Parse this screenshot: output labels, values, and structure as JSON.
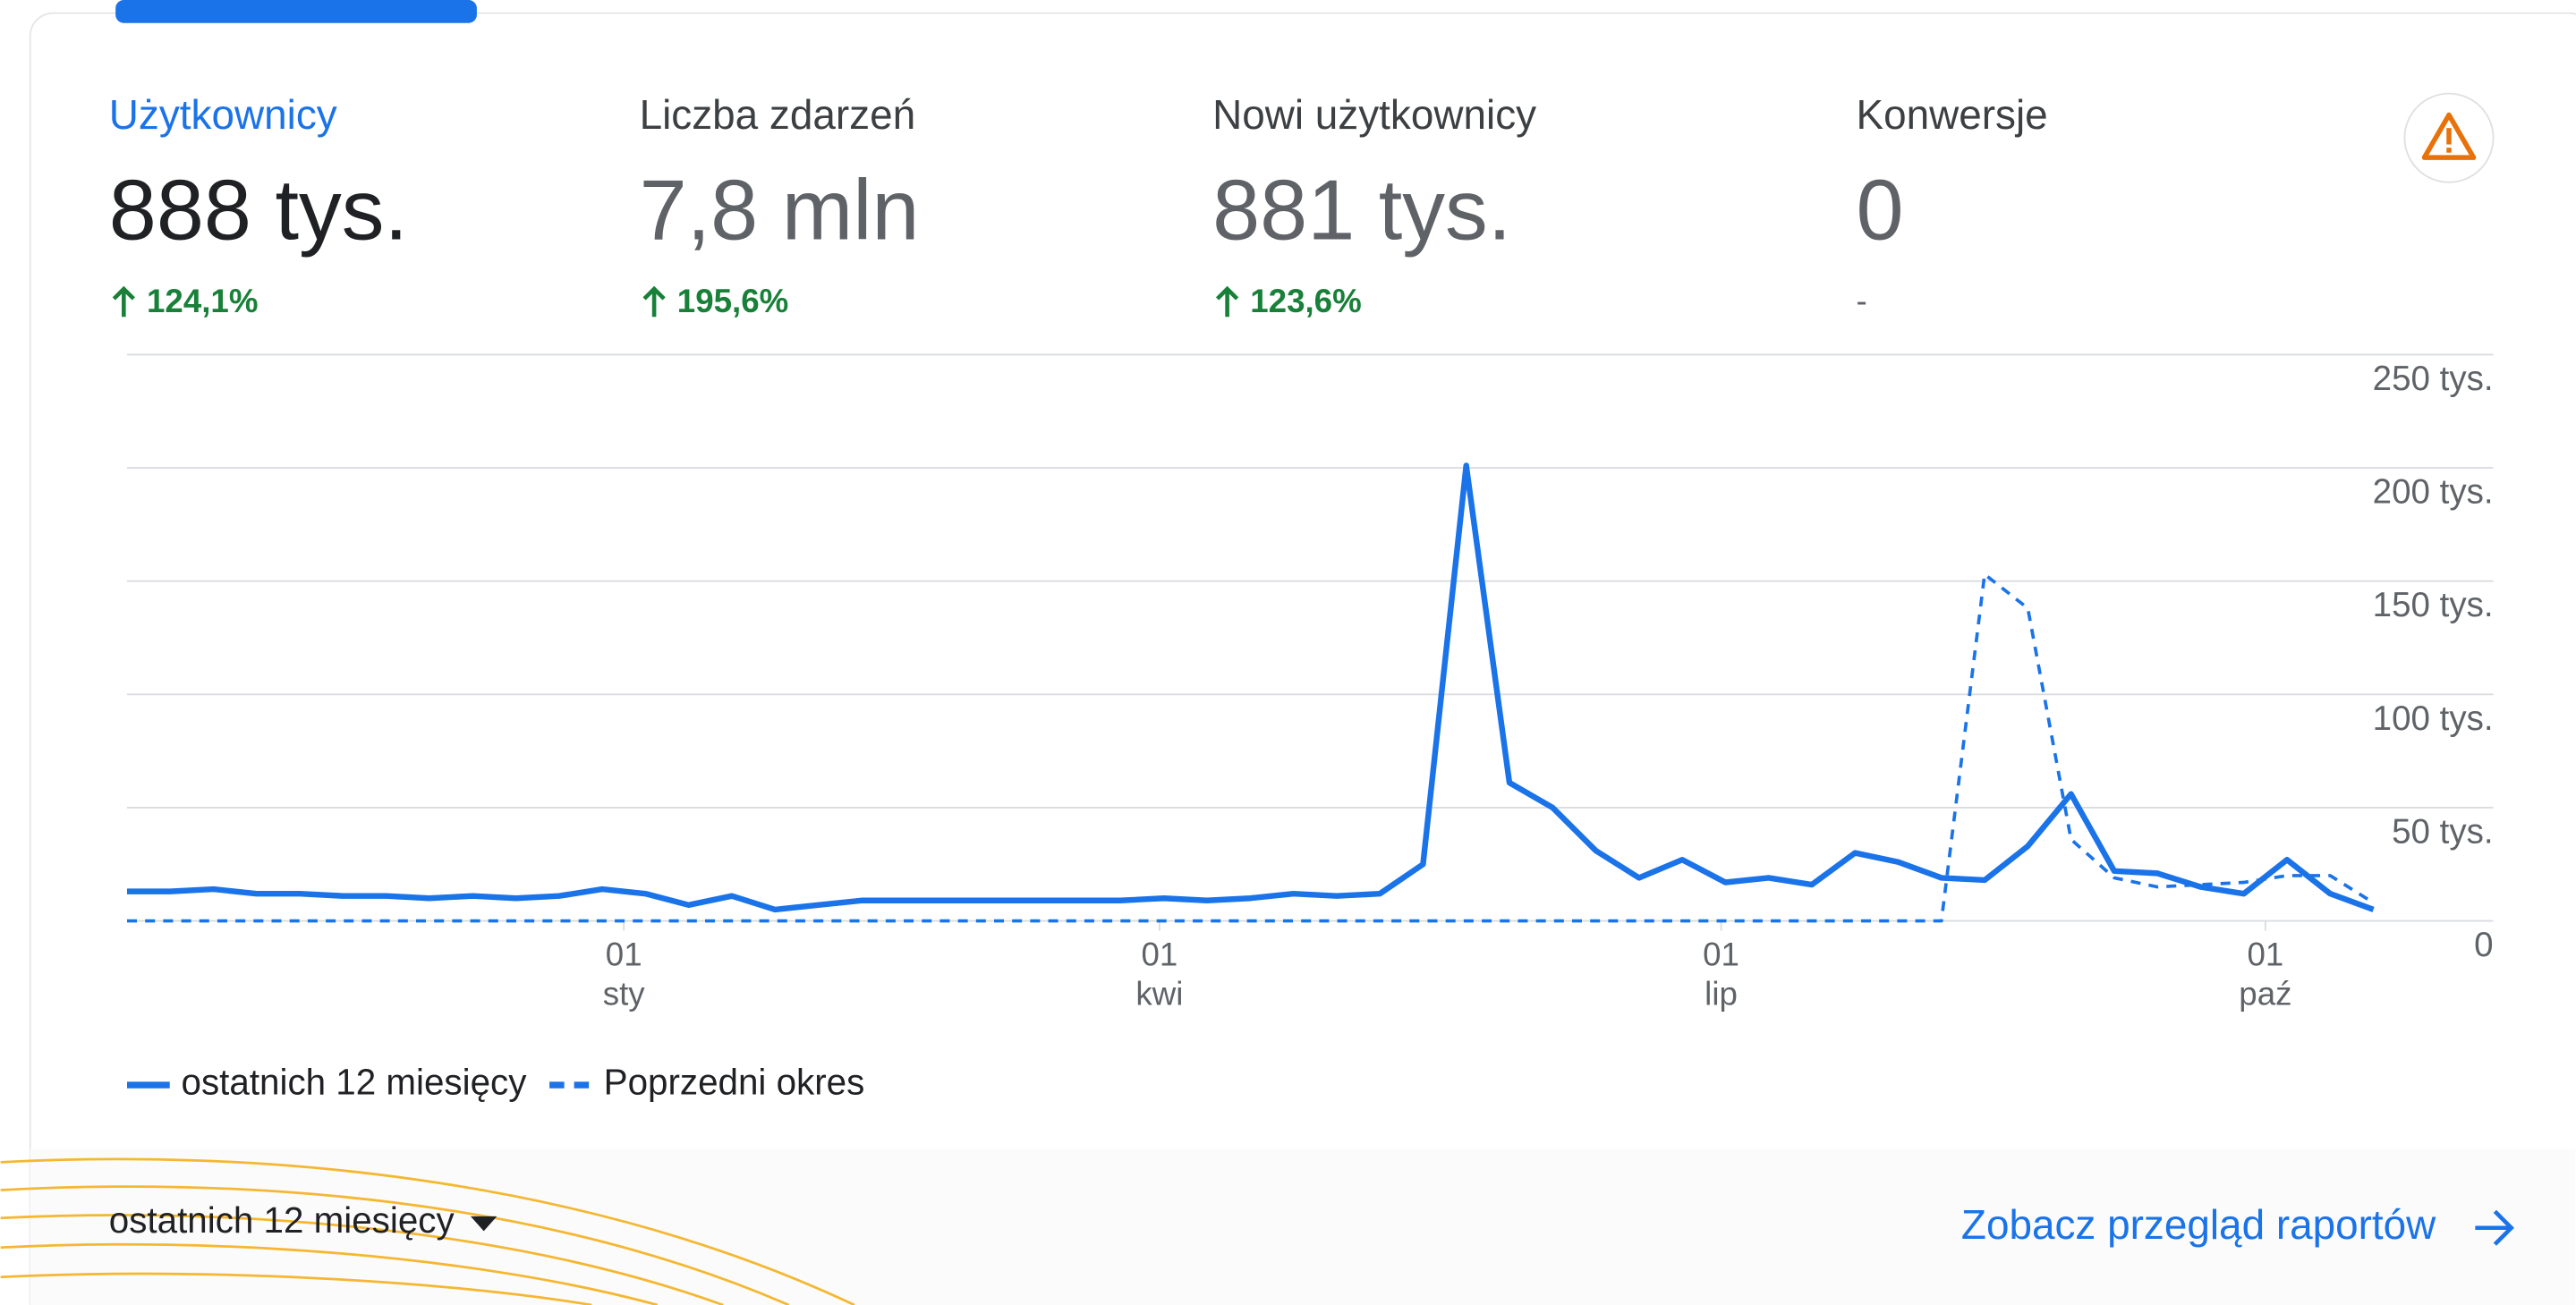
{
  "metrics": [
    {
      "label": "Użytkownicy",
      "value": "888 tys.",
      "change": "124,1%"
    },
    {
      "label": "Liczba zdarzeń",
      "value": "7,8 mln",
      "change": "195,6%"
    },
    {
      "label": "Nowi użytkownicy",
      "value": "881 tys.",
      "change": "123,6%"
    },
    {
      "label": "Konwersje",
      "value": "0",
      "change": "-"
    }
  ],
  "chart_data": {
    "type": "line",
    "x": [
      0,
      1,
      2,
      3,
      4,
      5,
      6,
      7,
      8,
      9,
      10,
      11,
      12,
      13,
      14,
      15,
      16,
      17,
      18,
      19,
      20,
      21,
      22,
      23,
      24,
      25,
      26,
      27,
      28,
      29,
      30,
      31,
      32,
      33,
      34,
      35,
      36,
      37,
      38,
      39,
      40,
      41,
      42,
      43,
      44,
      45,
      46,
      47,
      48,
      49,
      50,
      51,
      52
    ],
    "xlim": [
      0,
      52
    ],
    "xticks": [
      {
        "value": 11.5,
        "label": [
          "01",
          "sty"
        ]
      },
      {
        "value": 23.9,
        "label": [
          "01",
          "kwi"
        ]
      },
      {
        "value": 36.9,
        "label": [
          "01",
          "lip"
        ]
      },
      {
        "value": 49.5,
        "label": [
          "01",
          "paź"
        ]
      }
    ],
    "ylim": [
      0,
      250
    ],
    "yticks": [
      0,
      {
        "value": 50,
        "label": "50 tys."
      },
      {
        "value": 100,
        "label": "100 tys."
      },
      {
        "value": 150,
        "label": "150 tys."
      },
      {
        "value": 200,
        "label": "200 tys."
      },
      {
        "value": 250,
        "label": "250 tys."
      }
    ],
    "grid": true,
    "series": [
      {
        "name": "ostatnich 12 miesięcy",
        "color": "#1a73e8",
        "dash": false,
        "values": [
          13,
          13,
          14,
          12,
          12,
          11,
          11,
          10,
          11,
          10,
          11,
          14,
          12,
          7,
          11,
          5,
          7,
          9,
          9,
          9,
          9,
          9,
          9,
          9,
          10,
          9,
          10,
          12,
          11,
          12,
          25,
          201,
          61,
          50,
          31,
          19,
          27,
          17,
          19,
          16,
          30,
          26,
          19,
          18,
          33,
          56,
          22,
          21,
          15,
          12,
          27,
          12,
          5
        ]
      },
      {
        "name": "Poprzedni okres",
        "color": "#1a73e8",
        "dash": true,
        "values": [
          0,
          0,
          0,
          0,
          0,
          0,
          0,
          0,
          0,
          0,
          0,
          0,
          0,
          0,
          0,
          0,
          0,
          0,
          0,
          0,
          0,
          0,
          0,
          0,
          0,
          0,
          0,
          0,
          0,
          0,
          0,
          0,
          0,
          0,
          0,
          0,
          0,
          0,
          0,
          0,
          0,
          0,
          0,
          153,
          138,
          36,
          19,
          15,
          16,
          17,
          20,
          20,
          8
        ]
      }
    ]
  },
  "footer": {
    "period": "ostatnich 12 miesięcy",
    "link": "Zobacz przegląd raportów"
  }
}
